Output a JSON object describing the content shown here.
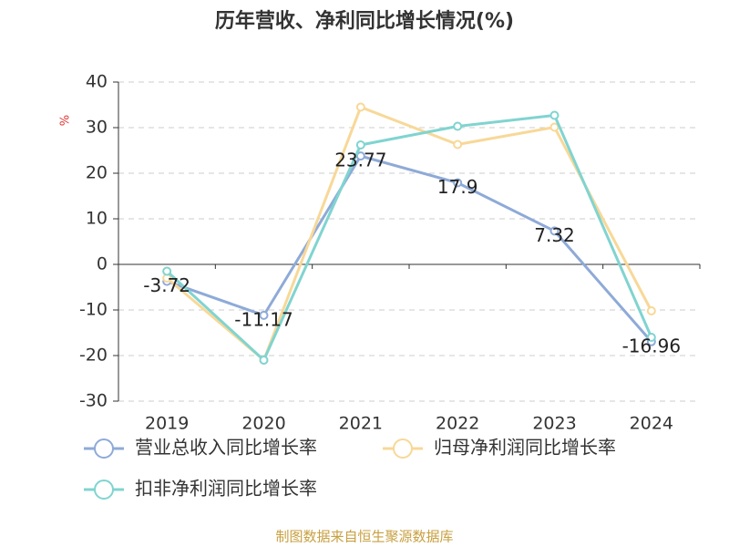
{
  "chart_data": {
    "type": "line",
    "title": "历年营收、净利同比增长情况(%)",
    "y_label": "%",
    "categories": [
      "2019",
      "2020",
      "2021",
      "2022",
      "2023",
      "2024"
    ],
    "series": [
      {
        "name": "营业总收入同比增长率",
        "color": "#8eaad8",
        "values": [
          -3.72,
          -11.17,
          23.77,
          17.9,
          7.32,
          -16.96
        ],
        "show_labels": true
      },
      {
        "name": "归母净利润同比增长率",
        "color": "#f8d898",
        "values": [
          -3,
          -21,
          34.5,
          26.3,
          30.1,
          -10.2
        ],
        "show_labels": false
      },
      {
        "name": "扣非净利润同比增长率",
        "color": "#80d4d0",
        "values": [
          -1.5,
          -21,
          26.2,
          30.3,
          32.7,
          -16
        ],
        "show_labels": false
      }
    ],
    "ylim": [
      -30,
      40
    ],
    "yticks": [
      -30,
      -20,
      -10,
      0,
      10,
      20,
      30,
      40
    ],
    "grid": true,
    "source": "制图数据来自恒生聚源数据库"
  }
}
